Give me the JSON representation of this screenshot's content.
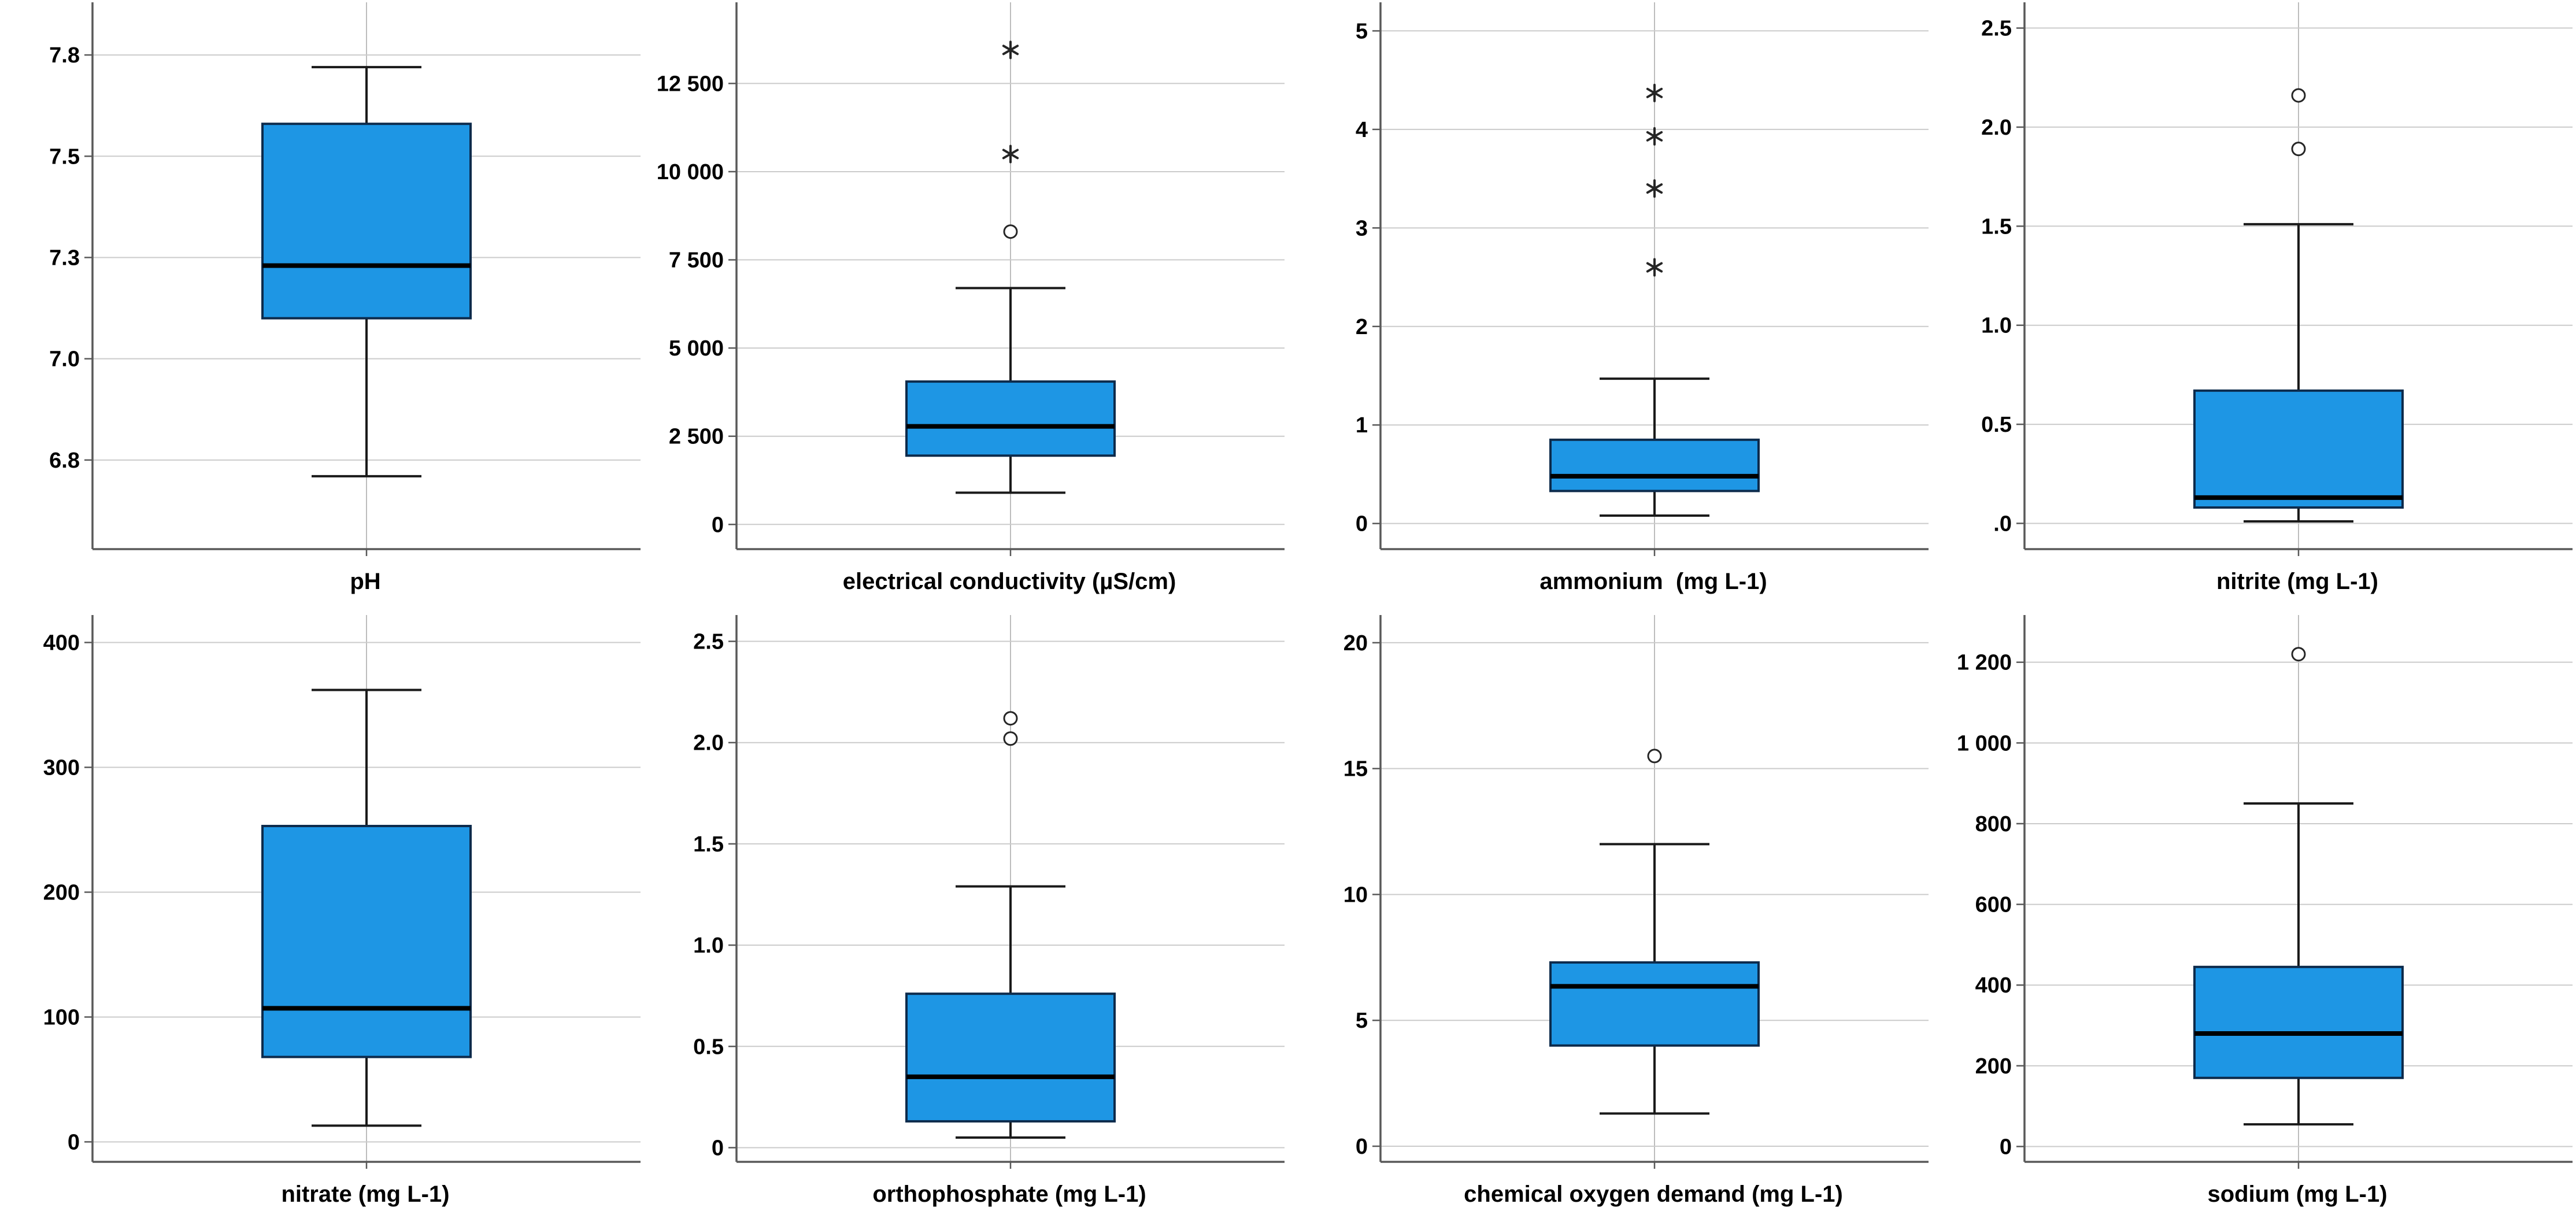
{
  "figure": {
    "description": "Grid of eight SPSS-style box plots of water quality parameters",
    "rows": 2,
    "cols": 4
  },
  "colors": {
    "box_fill": "#1E96E4",
    "box_stroke": "#0D2B4C",
    "median": "#000000",
    "whisker": "#1a1a1a",
    "gridline": "#cbcbcb",
    "center_line": "#bdbdbd",
    "axis": "#595959",
    "outlier": "#262626",
    "text": "#000000"
  },
  "chart_data": [
    {
      "type": "box",
      "id": "ph",
      "xlabel": "pH",
      "ylim": [
        6.53,
        7.88
      ],
      "ticks": [
        {
          "v": 7.75,
          "label": "7.8"
        },
        {
          "v": 7.5,
          "label": "7.5"
        },
        {
          "v": 7.25,
          "label": "7.3"
        },
        {
          "v": 7.0,
          "label": "7.0"
        },
        {
          "v": 6.75,
          "label": "6.8"
        }
      ],
      "stats": {
        "whisker_low": 6.71,
        "q1": 7.1,
        "median": 7.23,
        "q3": 7.58,
        "whisker_high": 7.72
      },
      "outliers": []
    },
    {
      "type": "box",
      "id": "ec",
      "xlabel": "electrical conductivity (µS/cm)",
      "ylim": [
        -700,
        14800
      ],
      "ticks": [
        {
          "v": 12500,
          "label": "12 500"
        },
        {
          "v": 10000,
          "label": "10 000"
        },
        {
          "v": 7500,
          "label": "7 500"
        },
        {
          "v": 5000,
          "label": "5 000"
        },
        {
          "v": 2500,
          "label": "2 500"
        },
        {
          "v": 0,
          "label": "0"
        }
      ],
      "stats": {
        "whisker_low": 900,
        "q1": 1950,
        "median": 2780,
        "q3": 4050,
        "whisker_high": 6700
      },
      "outliers": [
        {
          "value": 8300,
          "marker": "circle"
        },
        {
          "value": 10500,
          "marker": "star"
        },
        {
          "value": 13450,
          "marker": "star"
        }
      ]
    },
    {
      "type": "box",
      "id": "ammonium",
      "xlabel": "ammonium  (mg L-1)",
      "ylim": [
        -0.26,
        5.29
      ],
      "ticks": [
        {
          "v": 5,
          "label": "5"
        },
        {
          "v": 4,
          "label": "4"
        },
        {
          "v": 3,
          "label": "3"
        },
        {
          "v": 2,
          "label": "2"
        },
        {
          "v": 1,
          "label": "1"
        },
        {
          "v": 0,
          "label": "0"
        }
      ],
      "stats": {
        "whisker_low": 0.08,
        "q1": 0.33,
        "median": 0.48,
        "q3": 0.85,
        "whisker_high": 1.47
      },
      "outliers": [
        {
          "value": 2.6,
          "marker": "star"
        },
        {
          "value": 3.4,
          "marker": "star"
        },
        {
          "value": 3.93,
          "marker": "star"
        },
        {
          "value": 4.37,
          "marker": "star"
        }
      ]
    },
    {
      "type": "box",
      "id": "nitrite",
      "xlabel": "nitrite (mg L-1)",
      "ylim": [
        -0.13,
        2.63
      ],
      "ticks": [
        {
          "v": 2.5,
          "label": "2.5"
        },
        {
          "v": 2.0,
          "label": "2.0"
        },
        {
          "v": 1.5,
          "label": "1.5"
        },
        {
          "v": 1.0,
          "label": "1.0"
        },
        {
          "v": 0.5,
          "label": "0.5"
        },
        {
          "v": 0.0,
          "label": ".0"
        }
      ],
      "stats": {
        "whisker_low": 0.01,
        "q1": 0.08,
        "median": 0.13,
        "q3": 0.67,
        "whisker_high": 1.51
      },
      "outliers": [
        {
          "value": 1.89,
          "marker": "circle"
        },
        {
          "value": 2.16,
          "marker": "circle"
        }
      ]
    },
    {
      "type": "box",
      "id": "nitrate",
      "xlabel": "nitrate (mg L-1)",
      "ylim": [
        -16,
        422
      ],
      "ticks": [
        {
          "v": 400,
          "label": "400"
        },
        {
          "v": 300,
          "label": "300"
        },
        {
          "v": 200,
          "label": "200"
        },
        {
          "v": 100,
          "label": "100"
        },
        {
          "v": 0,
          "label": "0"
        }
      ],
      "stats": {
        "whisker_low": 13,
        "q1": 68,
        "median": 107,
        "q3": 253,
        "whisker_high": 362
      },
      "outliers": []
    },
    {
      "type": "box",
      "id": "orthophosphate",
      "xlabel": "orthophosphate (mg L-1)",
      "ylim": [
        -0.07,
        2.63
      ],
      "ticks": [
        {
          "v": 2.5,
          "label": "2.5"
        },
        {
          "v": 2.0,
          "label": "2.0"
        },
        {
          "v": 1.5,
          "label": "1.5"
        },
        {
          "v": 1.0,
          "label": "1.0"
        },
        {
          "v": 0.5,
          "label": "0.5"
        },
        {
          "v": 0.0,
          "label": "0"
        }
      ],
      "stats": {
        "whisker_low": 0.05,
        "q1": 0.13,
        "median": 0.35,
        "q3": 0.76,
        "whisker_high": 1.29
      },
      "outliers": [
        {
          "value": 2.02,
          "marker": "circle"
        },
        {
          "value": 2.12,
          "marker": "circle"
        }
      ]
    },
    {
      "type": "box",
      "id": "cod",
      "xlabel": "chemical oxygen demand (mg L-1)",
      "ylim": [
        -0.62,
        21.1
      ],
      "ticks": [
        {
          "v": 20,
          "label": "20"
        },
        {
          "v": 15,
          "label": "15"
        },
        {
          "v": 10,
          "label": "10"
        },
        {
          "v": 5,
          "label": "5"
        },
        {
          "v": 0,
          "label": "0"
        }
      ],
      "stats": {
        "whisker_low": 1.3,
        "q1": 4.0,
        "median": 6.35,
        "q3": 7.3,
        "whisker_high": 12.0
      },
      "outliers": [
        {
          "value": 15.5,
          "marker": "circle"
        }
      ]
    },
    {
      "type": "box",
      "id": "sodium",
      "xlabel": "sodium (mg L-1)",
      "ylim": [
        -38,
        1317
      ],
      "ticks": [
        {
          "v": 1200,
          "label": "1 200"
        },
        {
          "v": 1000,
          "label": "1 000"
        },
        {
          "v": 800,
          "label": "800"
        },
        {
          "v": 600,
          "label": "600"
        },
        {
          "v": 400,
          "label": "400"
        },
        {
          "v": 200,
          "label": "200"
        },
        {
          "v": 0,
          "label": "0"
        }
      ],
      "stats": {
        "whisker_low": 55,
        "q1": 170,
        "median": 280,
        "q3": 445,
        "whisker_high": 850
      },
      "outliers": [
        {
          "value": 1220,
          "marker": "circle"
        }
      ]
    }
  ]
}
